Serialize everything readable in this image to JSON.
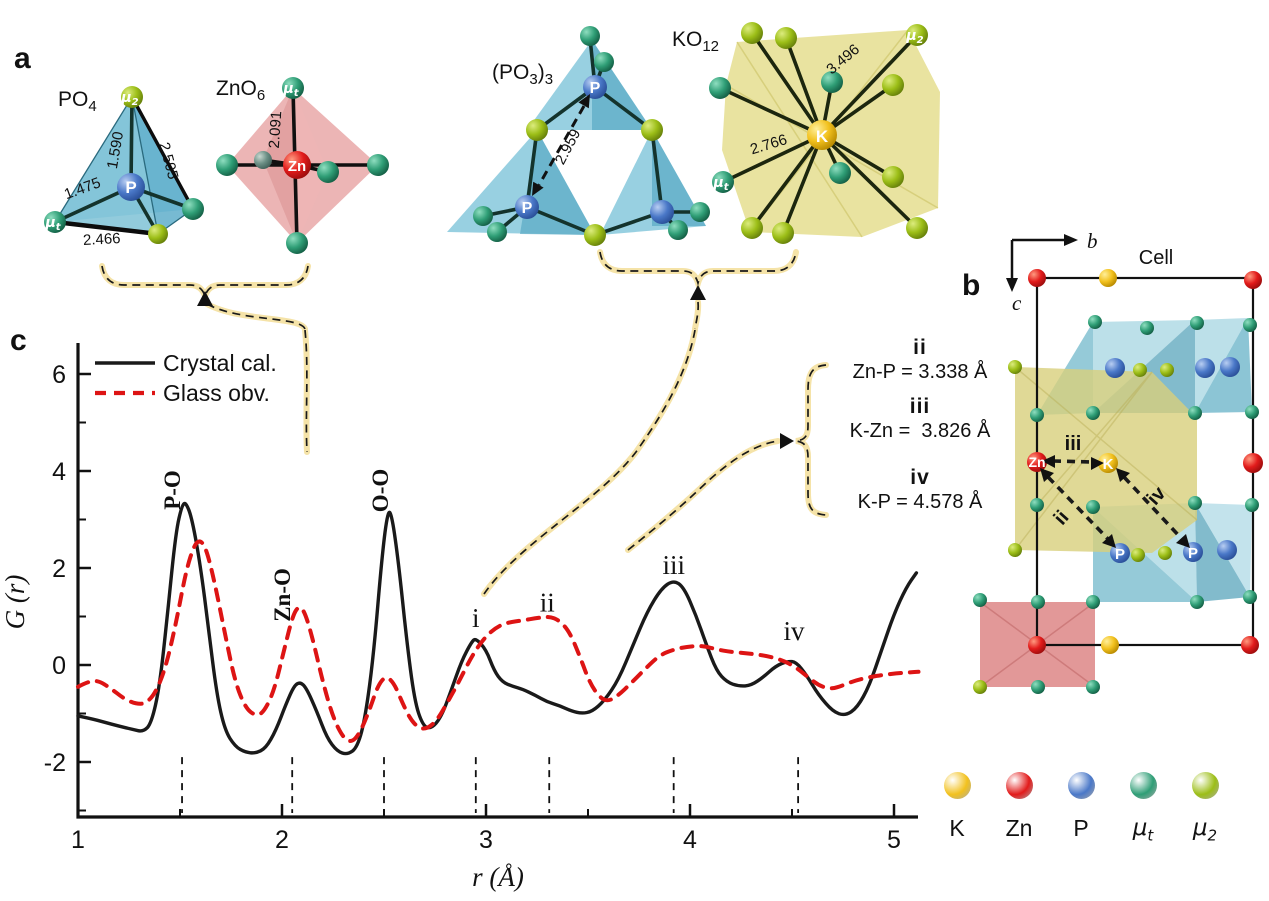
{
  "panel_a": {
    "label": "a",
    "po4": {
      "main": "PO",
      "sub": "4",
      "center": "P",
      "mu2": {
        "sym": "μ",
        "sub": "2"
      },
      "mut": {
        "sym": "μ",
        "sub": "t"
      },
      "bonds": {
        "b1": "1.590",
        "b2": "2.505",
        "b3": "1.475",
        "b4": "2.466"
      }
    },
    "zno6": {
      "main": "ZnO",
      "sub": "6",
      "center": "Zn",
      "bond": "2.091",
      "mut": {
        "sym": "μ",
        "sub": "t"
      }
    },
    "po33": {
      "p1": "(PO",
      "s1": "3",
      "p2": ")",
      "s2": "3",
      "p_top": "P",
      "p_left": "P",
      "bond": "2.959"
    },
    "ko12": {
      "main": "KO",
      "sub": "12",
      "center": "K",
      "bond_long": "3.496",
      "bond_short": "2.766",
      "mu2": {
        "sym": "μ",
        "sub": "2"
      },
      "mut": {
        "sym": "μ",
        "sub": "t"
      }
    }
  },
  "panel_b": {
    "label": "b",
    "cell": "Cell",
    "axis_b": "b",
    "axis_c": "c",
    "atoms": {
      "zn": "Zn",
      "k": "K",
      "p1": "P",
      "p2": "P"
    },
    "arrows": {
      "ii": "ii",
      "iii": "iii",
      "iv": "iv"
    }
  },
  "panel_c": {
    "label": "c"
  },
  "chart_data": {
    "type": "line",
    "title": "",
    "xlabel": "r (Å)",
    "ylabel": "G (r)",
    "x_range": [
      1,
      5.12
    ],
    "y_range": [
      -3.1,
      6.6
    ],
    "grid": false,
    "legend_position": "top-left",
    "x_ticks": [
      1,
      2,
      3,
      4,
      5
    ],
    "x_minor_ticks": [
      1.5,
      2.5,
      3.5,
      4.5
    ],
    "y_ticks": [
      -2,
      0,
      2,
      4,
      6
    ],
    "y_minor_ticks": [
      -3,
      -1,
      1,
      3,
      5
    ],
    "drop_lines": [
      1.51,
      2.05,
      2.5,
      2.95,
      3.31,
      3.92,
      4.53
    ],
    "series": [
      {
        "name": "Crystal cal.",
        "color": "#1a1a1a",
        "dash": null,
        "width": 3.4,
        "points": [
          [
            1.0,
            -1.05
          ],
          [
            1.06,
            -1.1
          ],
          [
            1.13,
            -1.18
          ],
          [
            1.2,
            -1.26
          ],
          [
            1.27,
            -1.33
          ],
          [
            1.32,
            -1.38
          ],
          [
            1.36,
            -1.2
          ],
          [
            1.4,
            -0.45
          ],
          [
            1.44,
            1.1
          ],
          [
            1.48,
            2.75
          ],
          [
            1.51,
            3.3
          ],
          [
            1.53,
            3.35
          ],
          [
            1.56,
            3.0
          ],
          [
            1.6,
            2.05
          ],
          [
            1.64,
            0.75
          ],
          [
            1.68,
            -0.6
          ],
          [
            1.72,
            -1.35
          ],
          [
            1.77,
            -1.68
          ],
          [
            1.82,
            -1.8
          ],
          [
            1.87,
            -1.82
          ],
          [
            1.92,
            -1.72
          ],
          [
            1.97,
            -1.35
          ],
          [
            2.02,
            -0.8
          ],
          [
            2.06,
            -0.42
          ],
          [
            2.09,
            -0.35
          ],
          [
            2.12,
            -0.48
          ],
          [
            2.17,
            -0.95
          ],
          [
            2.22,
            -1.5
          ],
          [
            2.27,
            -1.78
          ],
          [
            2.32,
            -1.85
          ],
          [
            2.37,
            -1.7
          ],
          [
            2.41,
            -1.05
          ],
          [
            2.45,
            0.25
          ],
          [
            2.49,
            2.25
          ],
          [
            2.52,
            3.22
          ],
          [
            2.54,
            3.05
          ],
          [
            2.57,
            2.15
          ],
          [
            2.61,
            0.55
          ],
          [
            2.65,
            -0.75
          ],
          [
            2.69,
            -1.25
          ],
          [
            2.73,
            -1.32
          ],
          [
            2.78,
            -1.08
          ],
          [
            2.83,
            -0.52
          ],
          [
            2.88,
            0.08
          ],
          [
            2.93,
            0.48
          ],
          [
            2.95,
            0.55
          ],
          [
            3.0,
            0.32
          ],
          [
            3.04,
            -0.12
          ],
          [
            3.08,
            -0.35
          ],
          [
            3.13,
            -0.44
          ],
          [
            3.18,
            -0.5
          ],
          [
            3.24,
            -0.62
          ],
          [
            3.3,
            -0.76
          ],
          [
            3.36,
            -0.84
          ],
          [
            3.42,
            -0.95
          ],
          [
            3.47,
            -1.0
          ],
          [
            3.52,
            -0.96
          ],
          [
            3.58,
            -0.74
          ],
          [
            3.65,
            -0.3
          ],
          [
            3.72,
            0.4
          ],
          [
            3.79,
            1.1
          ],
          [
            3.86,
            1.58
          ],
          [
            3.92,
            1.75
          ],
          [
            3.97,
            1.6
          ],
          [
            4.03,
            1.02
          ],
          [
            4.08,
            0.42
          ],
          [
            4.13,
            -0.12
          ],
          [
            4.18,
            -0.35
          ],
          [
            4.24,
            -0.44
          ],
          [
            4.3,
            -0.42
          ],
          [
            4.36,
            -0.25
          ],
          [
            4.42,
            -0.02
          ],
          [
            4.48,
            0.08
          ],
          [
            4.52,
            0.06
          ],
          [
            4.57,
            -0.2
          ],
          [
            4.63,
            -0.62
          ],
          [
            4.7,
            -0.96
          ],
          [
            4.76,
            -1.05
          ],
          [
            4.82,
            -0.88
          ],
          [
            4.88,
            -0.42
          ],
          [
            4.94,
            0.32
          ],
          [
            5.0,
            1.05
          ],
          [
            5.06,
            1.6
          ],
          [
            5.11,
            1.9
          ]
        ]
      },
      {
        "name": "Glass obv.",
        "color": "#DD1414",
        "dash": "11 9",
        "width": 4,
        "points": [
          [
            1.0,
            -0.45
          ],
          [
            1.05,
            -0.34
          ],
          [
            1.1,
            -0.32
          ],
          [
            1.16,
            -0.48
          ],
          [
            1.22,
            -0.68
          ],
          [
            1.28,
            -0.8
          ],
          [
            1.33,
            -0.8
          ],
          [
            1.38,
            -0.58
          ],
          [
            1.43,
            -0.05
          ],
          [
            1.48,
            0.85
          ],
          [
            1.53,
            1.95
          ],
          [
            1.57,
            2.48
          ],
          [
            1.6,
            2.58
          ],
          [
            1.63,
            2.38
          ],
          [
            1.67,
            1.7
          ],
          [
            1.72,
            0.65
          ],
          [
            1.77,
            -0.35
          ],
          [
            1.82,
            -0.88
          ],
          [
            1.87,
            -1.05
          ],
          [
            1.91,
            -0.98
          ],
          [
            1.96,
            -0.55
          ],
          [
            2.01,
            0.3
          ],
          [
            2.05,
            0.98
          ],
          [
            2.08,
            1.22
          ],
          [
            2.11,
            1.12
          ],
          [
            2.15,
            0.55
          ],
          [
            2.2,
            -0.35
          ],
          [
            2.25,
            -1.08
          ],
          [
            2.3,
            -1.5
          ],
          [
            2.34,
            -1.6
          ],
          [
            2.38,
            -1.42
          ],
          [
            2.43,
            -0.92
          ],
          [
            2.47,
            -0.42
          ],
          [
            2.51,
            -0.22
          ],
          [
            2.55,
            -0.38
          ],
          [
            2.59,
            -0.78
          ],
          [
            2.63,
            -1.12
          ],
          [
            2.67,
            -1.3
          ],
          [
            2.71,
            -1.32
          ],
          [
            2.76,
            -1.14
          ],
          [
            2.81,
            -0.78
          ],
          [
            2.87,
            -0.32
          ],
          [
            2.93,
            0.18
          ],
          [
            2.99,
            0.55
          ],
          [
            3.05,
            0.78
          ],
          [
            3.11,
            0.88
          ],
          [
            3.18,
            0.92
          ],
          [
            3.25,
            0.97
          ],
          [
            3.31,
            1.0
          ],
          [
            3.36,
            0.92
          ],
          [
            3.41,
            0.68
          ],
          [
            3.46,
            0.18
          ],
          [
            3.51,
            -0.38
          ],
          [
            3.56,
            -0.68
          ],
          [
            3.6,
            -0.75
          ],
          [
            3.65,
            -0.62
          ],
          [
            3.71,
            -0.38
          ],
          [
            3.78,
            -0.08
          ],
          [
            3.85,
            0.2
          ],
          [
            3.92,
            0.32
          ],
          [
            3.99,
            0.38
          ],
          [
            4.06,
            0.4
          ],
          [
            4.13,
            0.32
          ],
          [
            4.2,
            0.27
          ],
          [
            4.28,
            0.24
          ],
          [
            4.36,
            0.2
          ],
          [
            4.44,
            0.12
          ],
          [
            4.51,
            -0.02
          ],
          [
            4.57,
            -0.22
          ],
          [
            4.63,
            -0.42
          ],
          [
            4.69,
            -0.5
          ],
          [
            4.75,
            -0.42
          ],
          [
            4.81,
            -0.32
          ],
          [
            4.88,
            -0.25
          ],
          [
            4.95,
            -0.2
          ],
          [
            5.02,
            -0.17
          ],
          [
            5.08,
            -0.15
          ],
          [
            5.12,
            -0.14
          ]
        ]
      }
    ],
    "peak_labels": [
      {
        "text": "P-O",
        "r": 1.5,
        "G": 3.2,
        "rot": true,
        "bold": true
      },
      {
        "text": "Zn-O",
        "r": 2.04,
        "G": 0.89,
        "rot": true,
        "bold": true
      },
      {
        "text": "O-O",
        "r": 2.52,
        "G": 3.15,
        "rot": true,
        "bold": true
      },
      {
        "text": "i",
        "r": 2.95,
        "G": 0.78,
        "rot": false,
        "bold": false
      },
      {
        "text": "ii",
        "r": 3.3,
        "G": 1.1,
        "rot": false,
        "bold": false
      },
      {
        "text": "iii",
        "r": 3.92,
        "G": 1.88,
        "rot": false,
        "bold": false
      },
      {
        "text": "iv",
        "r": 4.51,
        "G": 0.52,
        "rot": false,
        "bold": false
      }
    ]
  },
  "annotations": {
    "items": [
      {
        "numeral": "ii",
        "text": "Zn-P = 3.338 Å"
      },
      {
        "numeral": "iii",
        "text": "K-Zn =  3.826 Å"
      },
      {
        "numeral": "iv",
        "text": "K-P = 4.578 Å"
      }
    ]
  },
  "atom_legend": [
    {
      "sym": "K",
      "sub": "",
      "color": "#F2C11E"
    },
    {
      "sym": "Zn",
      "sub": "",
      "color": "#E21B1B"
    },
    {
      "sym": "P",
      "sub": "",
      "color": "#4A78C8"
    },
    {
      "sym": "μ",
      "sub": "t",
      "color": "#2F9E76"
    },
    {
      "sym": "μ",
      "sub": "2",
      "color": "#9CBE17"
    }
  ]
}
